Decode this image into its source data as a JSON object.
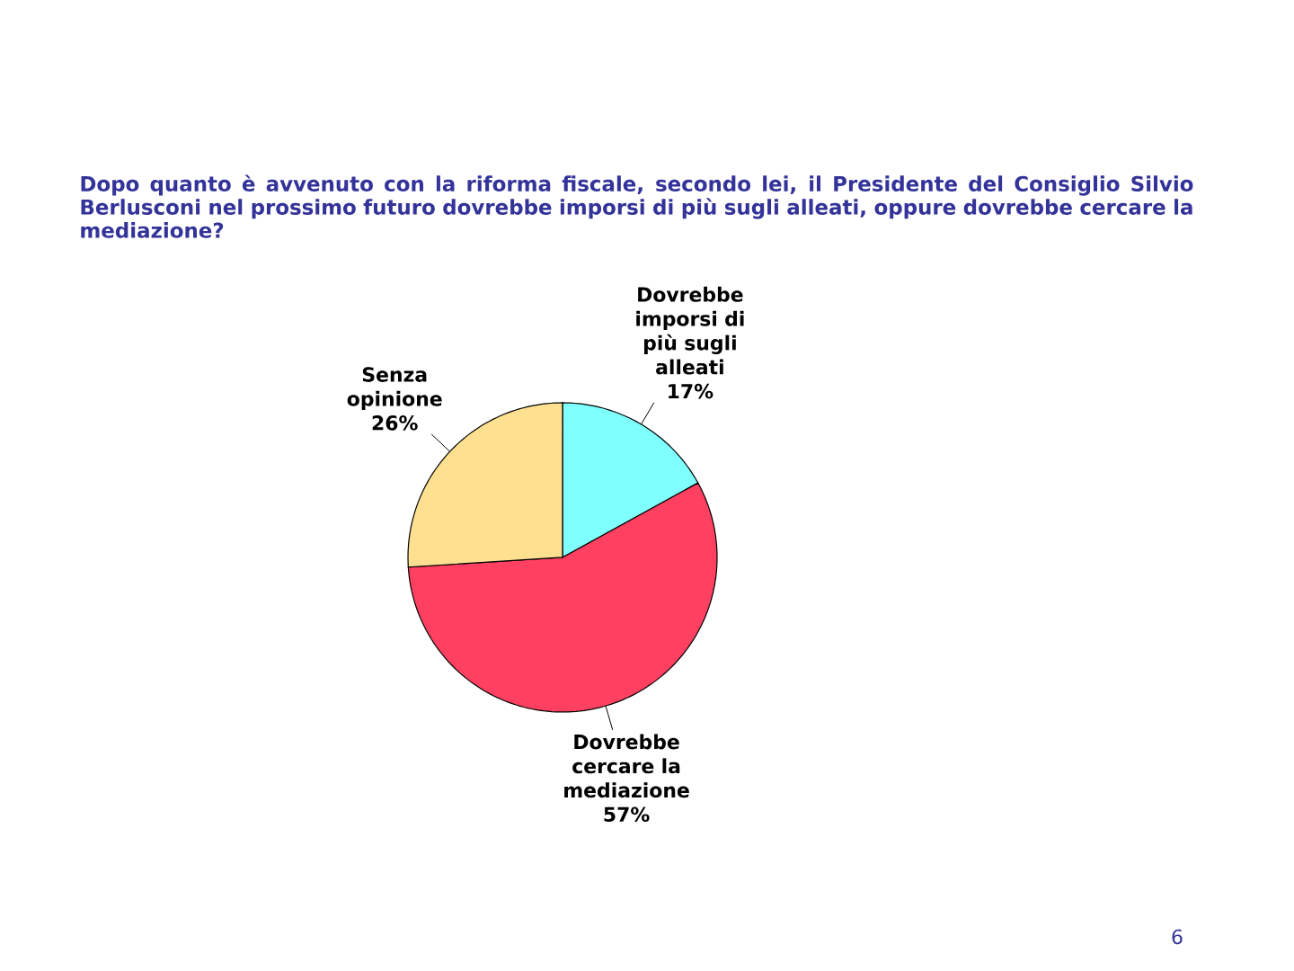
{
  "chart_data": {
    "type": "pie",
    "title": "Dopo quanto è avvenuto con la riforma fiscale, secondo lei, il Presidente del Consiglio Silvio Berlusconi nel prossimo futuro dovrebbe imporsi di più sugli alleati, oppure dovrebbe cercare la mediazione?",
    "categories": [
      "Dovrebbe imporsi di più sugli alleati",
      "Dovrebbe cercare la mediazione",
      "Senza opinione"
    ],
    "values": [
      17,
      57,
      26
    ],
    "value_labels": [
      "17%",
      "57%",
      "26%"
    ],
    "colors": [
      "#80ffff",
      "#ff4060",
      "#ffe090"
    ],
    "annotations": [
      "6"
    ]
  }
}
